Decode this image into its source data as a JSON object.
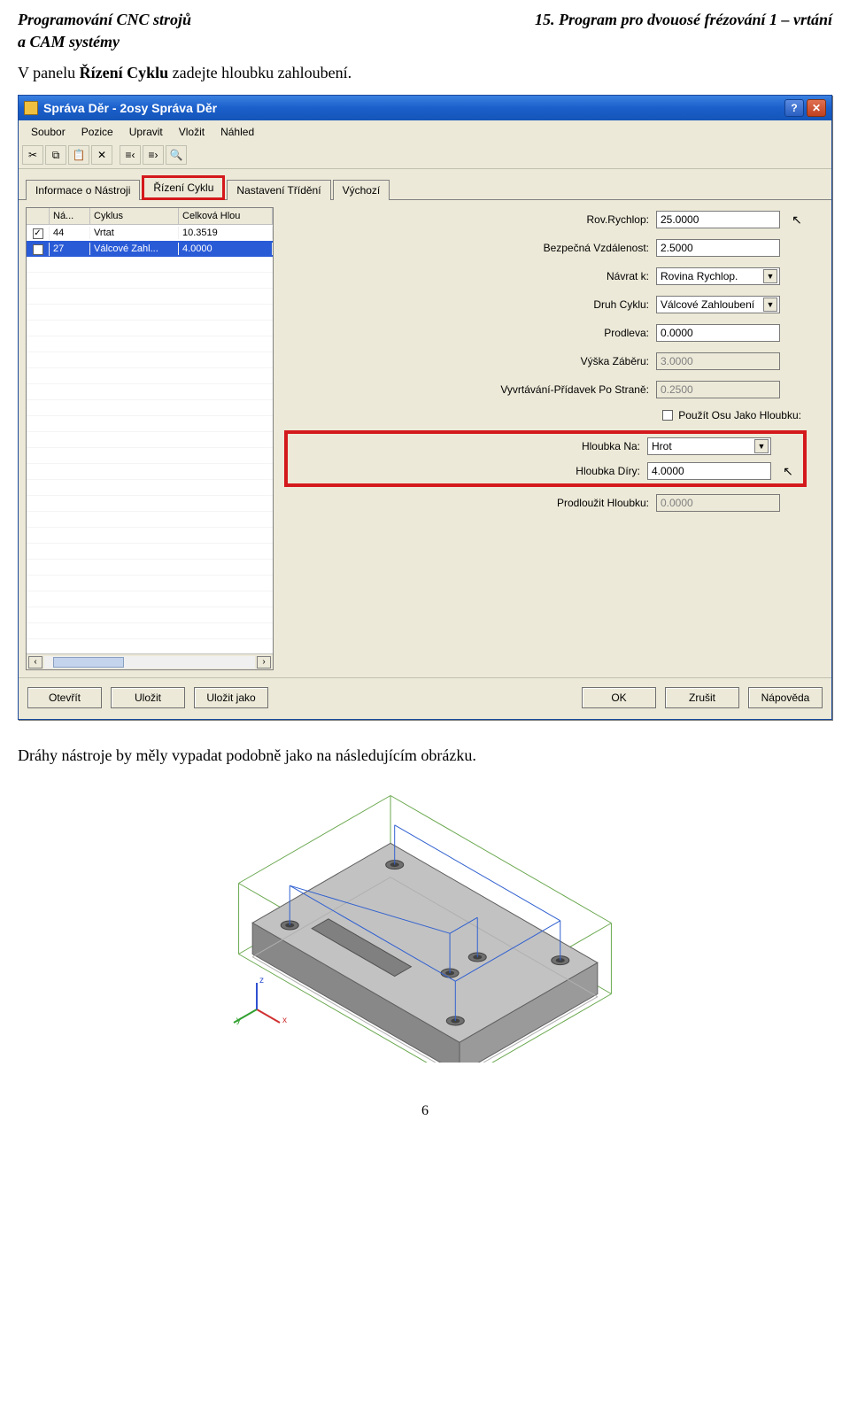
{
  "header": {
    "left1": "Programování CNC strojů",
    "left2": "a CAM systémy",
    "right": "15. Program pro dvouosé frézování 1 – vrtání"
  },
  "body": {
    "line1_a": "V panelu ",
    "line1_b": "Řízení Cyklu",
    "line1_c": " zadejte hloubku zahloubení.",
    "caption": "Dráhy nástroje by měly vypadat podobně jako na následujícím obrázku.",
    "pagenum": "6"
  },
  "window": {
    "title": "Správa Děr - 2osy Správa Děr",
    "menus": [
      "Soubor",
      "Pozice",
      "Upravit",
      "Vložit",
      "Náhled"
    ],
    "tabs": [
      "Informace o Nástroji",
      "Řízení Cyklu",
      "Nastavení Třídění",
      "Výchozí"
    ],
    "table": {
      "columns": [
        "",
        "Ná...",
        "Cyklus",
        "Celková Hlou"
      ],
      "rows": [
        {
          "checked": true,
          "na": "44",
          "cyklus": "Vrtat",
          "hloubka": "10.3519",
          "selected": false
        },
        {
          "checked": true,
          "na": "27",
          "cyklus": "Válcové Zahl...",
          "hloubka": "4.0000",
          "selected": true
        }
      ],
      "empty_rows": 24
    },
    "form": {
      "rov_rychlop_label": "Rov.Rychlop:",
      "rov_rychlop": "25.0000",
      "bezpecna_label": "Bezpečná Vzdálenost:",
      "bezpecna": "2.5000",
      "navrat_label": "Návrat k:",
      "navrat": "Rovina Rychlop.",
      "druh_label": "Druh Cyklu:",
      "druh": "Válcové Zahloubení",
      "prodleva_label": "Prodleva:",
      "prodleva": "0.0000",
      "vyska_label": "Výška Záběru:",
      "vyska": "3.0000",
      "vyvrt_label": "Vyvrtávání-Přídavek Po Straně:",
      "vyvrt": "0.2500",
      "pouzit_osu": "Použít Osu Jako Hloubku:",
      "hloubka_na_label": "Hloubka Na:",
      "hloubka_na": "Hrot",
      "hloubka_diry_label": "Hloubka Díry:",
      "hloubka_diry": "4.0000",
      "prodlouzit_label": "Prodloužit Hloubku:",
      "prodlouzit": "0.0000"
    },
    "buttons": {
      "open": "Otevřít",
      "save": "Uložit",
      "saveas": "Uložit jako",
      "ok": "OK",
      "cancel": "Zrušit",
      "help": "Nápověda"
    }
  },
  "isometric": {
    "part_color": "#9a9a9a",
    "part_top": "#c2c2c2",
    "wire_color": "#6aa84f",
    "hole_color": "#707070",
    "axis_x": "#d03030",
    "axis_y": "#30a030",
    "axis_z": "#3050d0",
    "path_color": "#3060d0"
  }
}
